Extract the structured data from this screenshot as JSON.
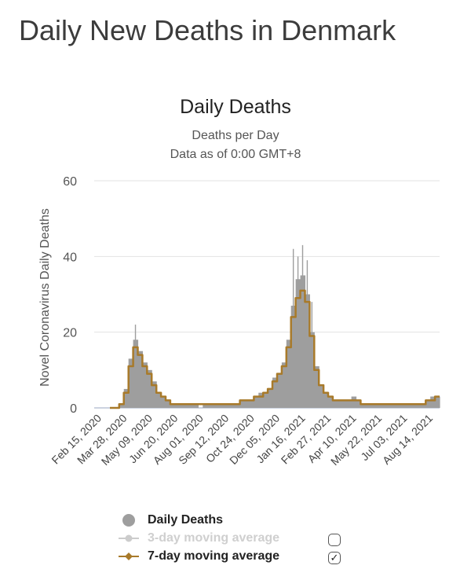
{
  "page_title": "Daily New Deaths in Denmark",
  "chart_data": {
    "type": "bar",
    "title": "Daily Deaths",
    "subtitle": "Deaths per Day",
    "subtitle2": "Data as of 0:00 GMT+8",
    "ylabel": "Novel Coronavirus Daily Deaths",
    "xlabel": "",
    "ylim": [
      0,
      60
    ],
    "yticks": [
      0,
      20,
      40,
      60
    ],
    "categories": [
      "Feb 15, 2020",
      "Mar 28, 2020",
      "May 09, 2020",
      "Jun 20, 2020",
      "Aug 01, 2020",
      "Sep 12, 2020",
      "Oct 24, 2020",
      "Dec 05, 2020",
      "Jan 16, 2021",
      "Feb 27, 2021",
      "Apr 10, 2021",
      "May 22, 2021",
      "Jul 03, 2021",
      "Aug 14, 2021"
    ],
    "series": [
      {
        "name": "Daily Deaths",
        "color": "#9e9e9e",
        "values_weekly": [
          0,
          0,
          1,
          5,
          13,
          18,
          15,
          12,
          10,
          7,
          4,
          3,
          2,
          1,
          1,
          1,
          1,
          1,
          1,
          0,
          1,
          1,
          1,
          1,
          1,
          1,
          1,
          1,
          2,
          2,
          2,
          3,
          4,
          4,
          5,
          8,
          9,
          12,
          18,
          27,
          34,
          35,
          30,
          20,
          11,
          6,
          4,
          3,
          2,
          2,
          2,
          2,
          3,
          2,
          1,
          1,
          1,
          1,
          1,
          1,
          1,
          1,
          1,
          1,
          1,
          1,
          1,
          1,
          2,
          3,
          3
        ]
      },
      {
        "name": "3-day moving average",
        "color": "#cccccc",
        "visible": false
      },
      {
        "name": "7-day moving average",
        "color": "#a87a2a",
        "visible": true,
        "values_weekly": [
          0,
          0,
          1,
          4,
          11,
          16,
          14,
          11,
          9,
          6,
          4,
          3,
          2,
          1,
          1,
          1,
          1,
          1,
          1,
          1,
          1,
          1,
          1,
          1,
          1,
          1,
          1,
          1,
          2,
          2,
          2,
          3,
          3,
          4,
          5,
          7,
          9,
          11,
          16,
          24,
          29,
          31,
          28,
          19,
          10,
          6,
          4,
          3,
          2,
          2,
          2,
          2,
          2,
          2,
          1,
          1,
          1,
          1,
          1,
          1,
          1,
          1,
          1,
          1,
          1,
          1,
          1,
          1,
          2,
          2,
          3
        ]
      }
    ],
    "spikes": [
      {
        "week": 5,
        "value": 22
      },
      {
        "week": 39,
        "value": 42
      },
      {
        "week": 40,
        "value": 40
      },
      {
        "week": 41,
        "value": 43
      },
      {
        "week": 42,
        "value": 39
      },
      {
        "week": 43,
        "value": 28
      }
    ],
    "legend": [
      {
        "label": "Daily Deaths",
        "checked": null
      },
      {
        "label": "3-day moving average",
        "checked": false
      },
      {
        "label": "7-day moving average",
        "checked": true
      }
    ]
  }
}
